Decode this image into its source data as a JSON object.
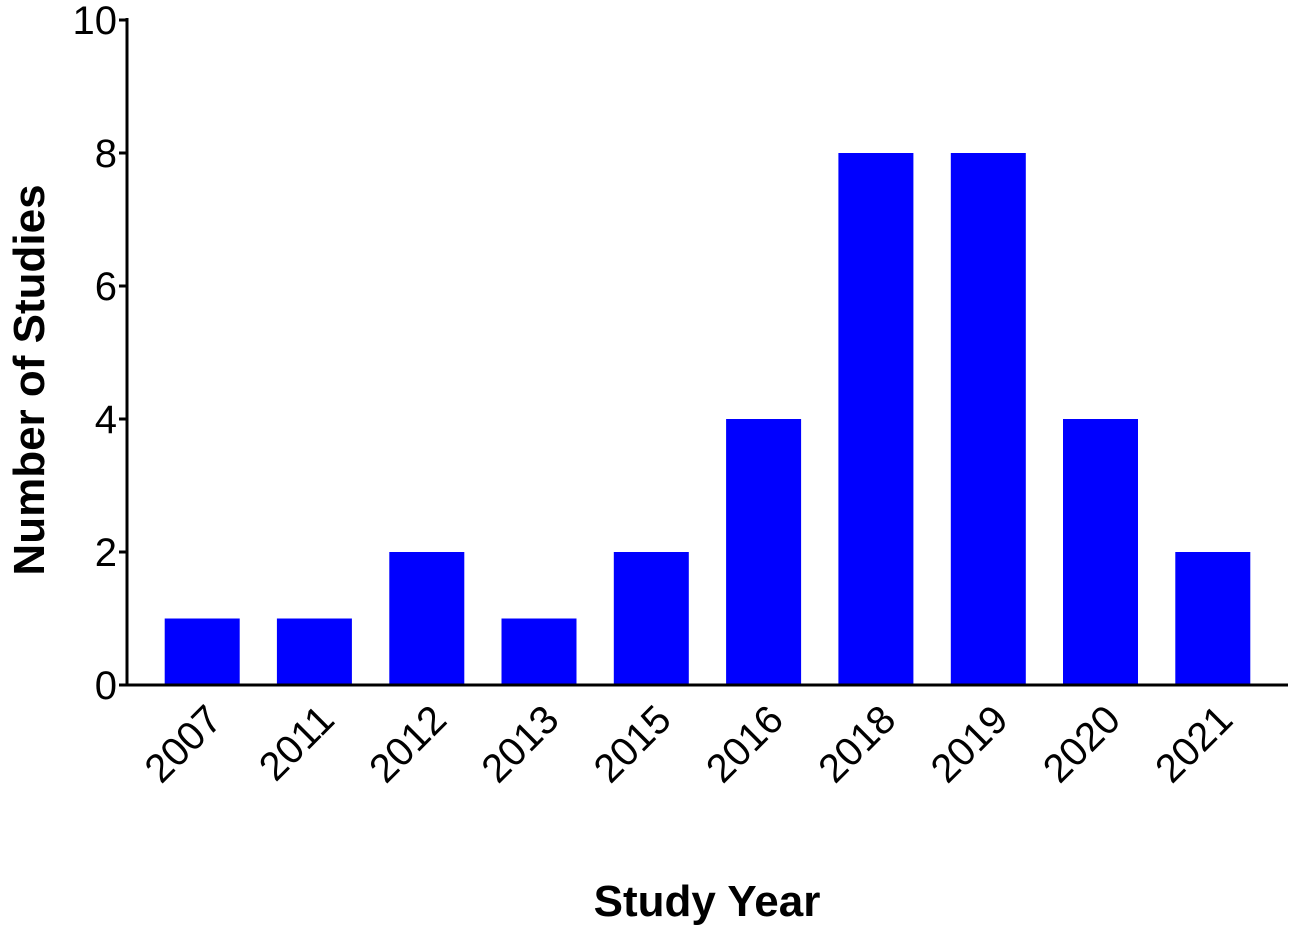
{
  "chart_data": {
    "type": "bar",
    "title": "",
    "xlabel": "Study Year",
    "ylabel": "Number of Studies",
    "categories": [
      "2007",
      "2011",
      "2012",
      "2013",
      "2015",
      "2016",
      "2018",
      "2019",
      "2020",
      "2021"
    ],
    "values": [
      1,
      1,
      2,
      1,
      2,
      4,
      8,
      8,
      4,
      2
    ],
    "ylim": [
      0,
      10
    ],
    "yticks": [
      "0",
      "2",
      "4",
      "6",
      "8",
      "10"
    ],
    "grid": false,
    "legend": "none",
    "bar_color": "#0000ff",
    "axis_color": "#000000",
    "background": "#ffffff"
  }
}
